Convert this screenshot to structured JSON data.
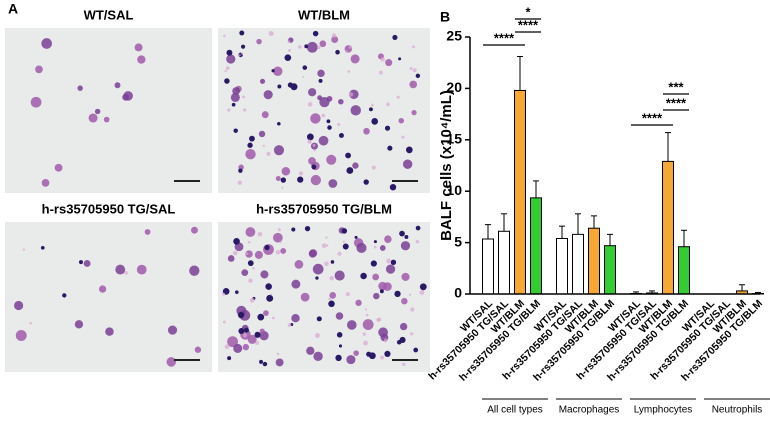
{
  "panel_a": {
    "label": "A",
    "images": [
      "WT/SAL",
      "WT/BLM",
      "h-rs35705950 TG/SAL",
      "h-rs35705950 TG/BLM"
    ]
  },
  "chart_data": {
    "type": "bar",
    "label": "B",
    "ylabel": "BALF cells (x10⁴/mL)",
    "categories": [
      "All cell types",
      "Macrophages",
      "Lymphocytes",
      "Neutrophils"
    ],
    "series": [
      {
        "name": "WT/SAL",
        "color": "#ffffff",
        "values": [
          5.35,
          5.4,
          0.05,
          0
        ],
        "errors": [
          1.4,
          1.2,
          0.15,
          0
        ]
      },
      {
        "name": "h-rs35705950 TG/SAL",
        "color": "#ffffff",
        "values": [
          6.1,
          5.8,
          0.1,
          0
        ],
        "errors": [
          1.7,
          2.0,
          0.2,
          0
        ]
      },
      {
        "name": "WT/BLM",
        "color": "#f5a833",
        "values": [
          19.8,
          6.4,
          12.9,
          0.3
        ],
        "errors": [
          3.3,
          1.2,
          2.8,
          0.6
        ]
      },
      {
        "name": "h-rs35705950 TG/BLM",
        "color": "#33cc33",
        "values": [
          9.35,
          4.7,
          4.6,
          0.05
        ],
        "errors": [
          1.65,
          1.1,
          1.6,
          0.1
        ]
      }
    ],
    "ylim": [
      0,
      25
    ],
    "yticks": [
      0,
      5,
      10,
      15,
      20,
      25
    ],
    "annotations": [
      "****",
      "*",
      "****",
      "****",
      "***",
      "****"
    ]
  }
}
